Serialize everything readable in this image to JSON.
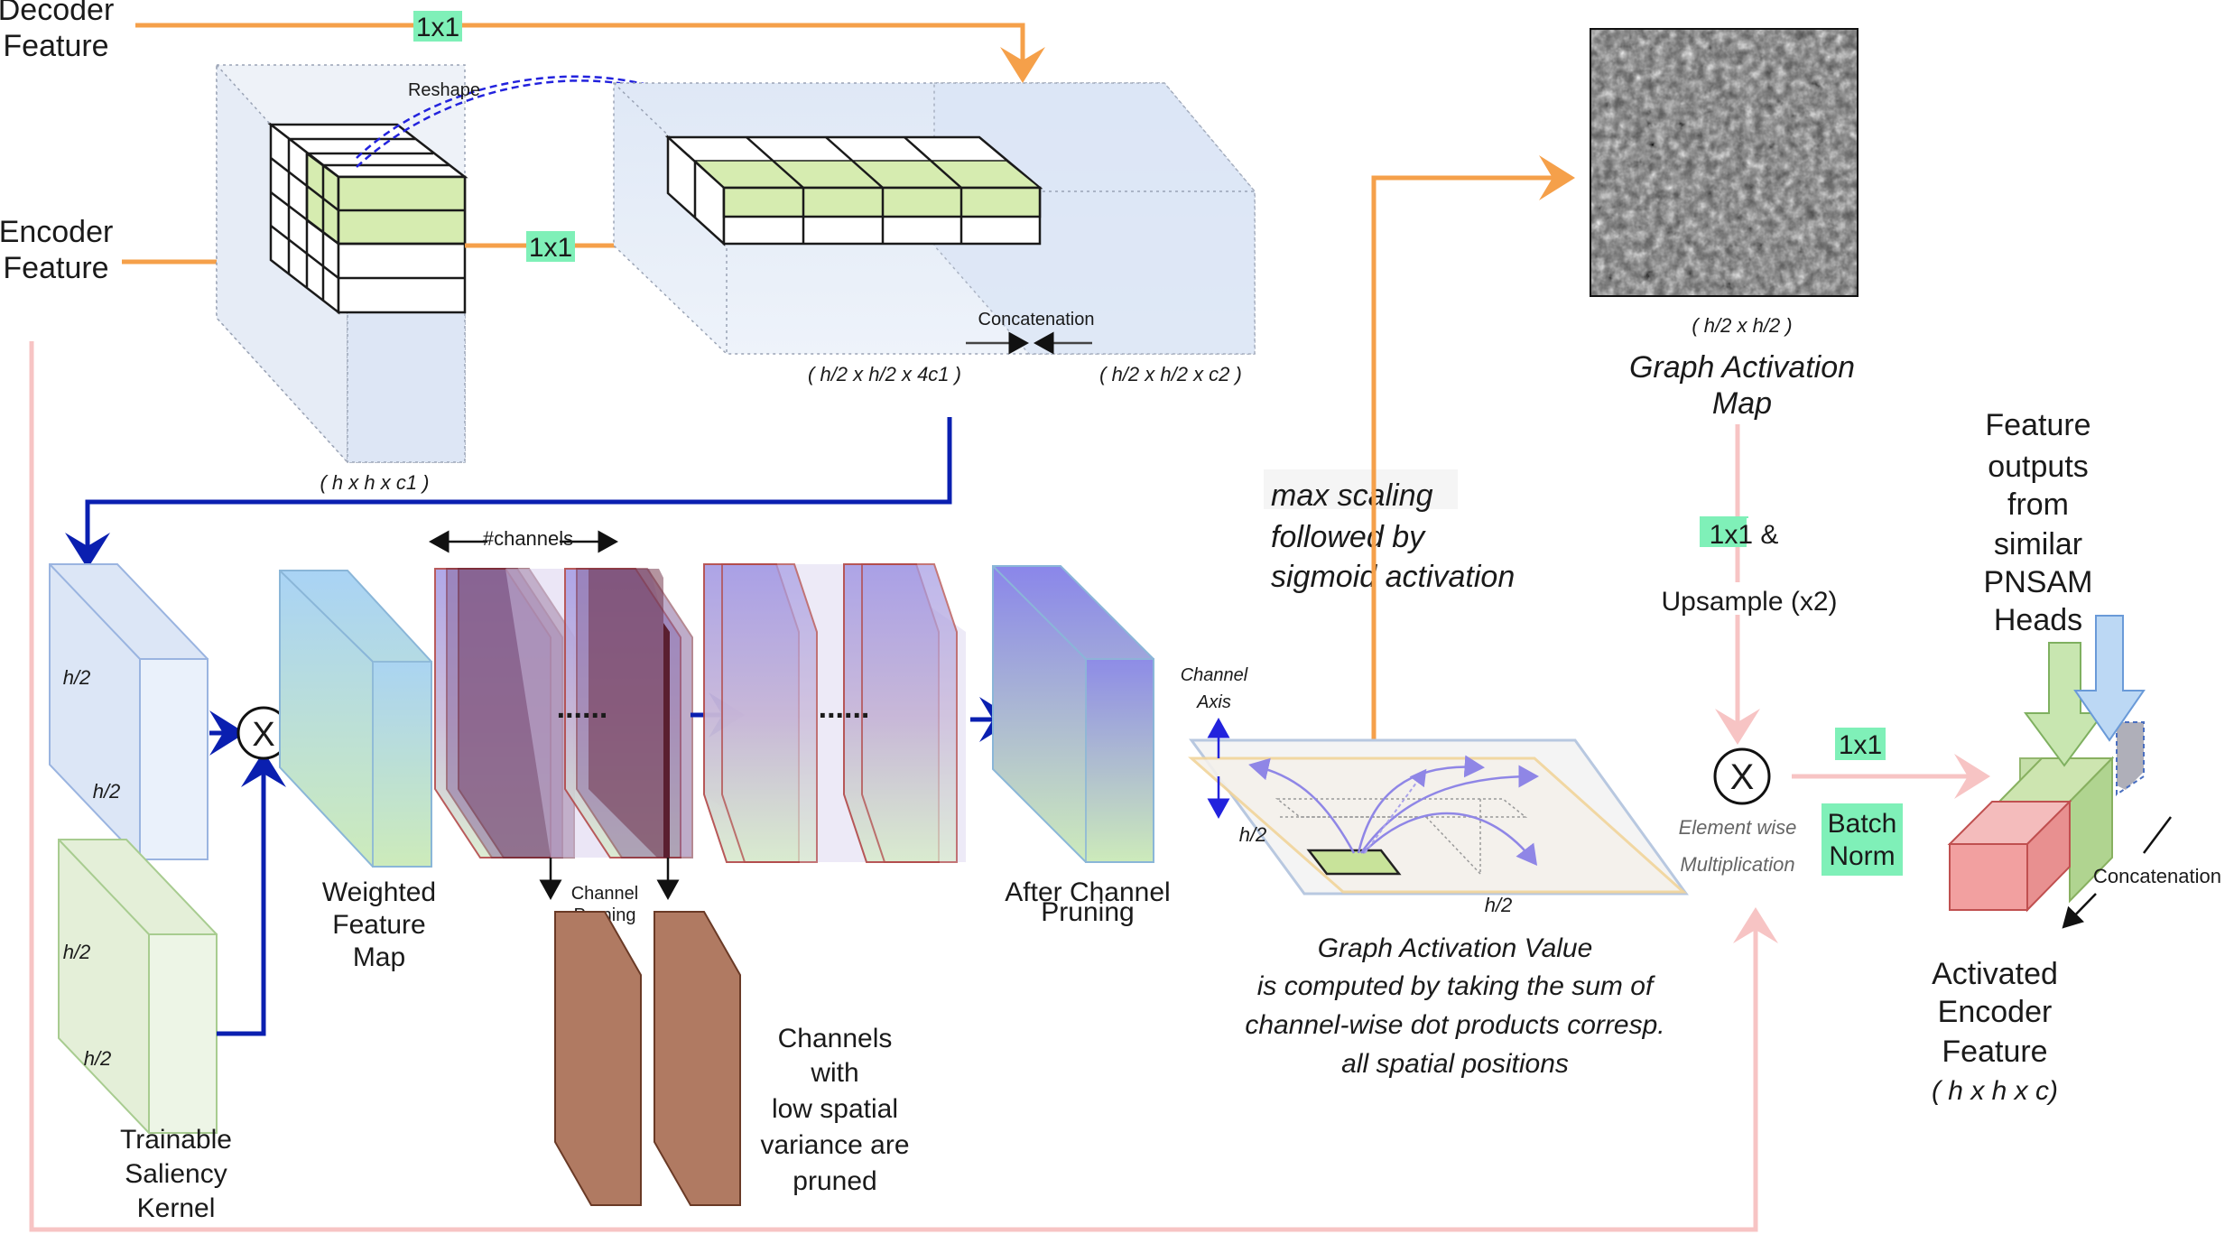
{
  "labels": {
    "decoder_feature": [
      "Decoder",
      "Feature"
    ],
    "encoder_feature": [
      "Encoder",
      "Feature"
    ],
    "top_conv": "1x1",
    "encoder_conv": "1x1",
    "reshape": "Reshape",
    "concat_top": "Concatenation",
    "dim_h_h_c1": "( h x h x c1 )",
    "dim_4c1": "( h/2 x h/2 x 4c1 )",
    "dim_c2": "( h/2 x h/2 x c2 )",
    "dim_h2_a": "h/2",
    "dim_h2_b": "h/2",
    "dim_h2_c": "h/2",
    "dim_h2_d": "h/2",
    "channels": "#channels",
    "weighted_feature_map": [
      "Weighted",
      "Feature",
      "Map"
    ],
    "trainable_kernel": [
      "Trainable",
      "Saliency",
      "Kernel"
    ],
    "channel_pruning": [
      "Channel",
      "Pruning"
    ],
    "dots_a": "......",
    "dots_b": "......",
    "after_pruning": [
      "After Channel",
      "Pruning"
    ],
    "pruned_channels": [
      "Channels",
      "with",
      "low spatial",
      "variance are",
      "pruned"
    ],
    "max_scaling": [
      "max scaling",
      "followed by",
      "sigmoid activation"
    ],
    "channel_axis": [
      "Channel",
      "Axis"
    ],
    "plane_h2_left": "h/2",
    "plane_h2_bottom": "h/2",
    "gav_text": [
      "Graph Activation Value",
      "is computed by taking the sum of",
      "channel-wise dot products corresp.",
      "all spatial positions"
    ],
    "gam_dim": "( h/2 x h/2 )",
    "gam_title": [
      "Graph  Activation",
      "Map"
    ],
    "conv_upsample_a": "1x1 &",
    "conv_upsample_b": "Upsample (x2)",
    "elem_mult": [
      "Element wise",
      "Multiplication"
    ],
    "final_conv": "1x1",
    "batch_norm": [
      "Batch",
      "Norm"
    ],
    "feature_outputs": [
      "Feature",
      "outputs",
      "from",
      "similar",
      "PNSAM",
      "Heads"
    ],
    "concat_right": "Concatenation",
    "activated": [
      "Activated",
      "Encoder",
      "Feature"
    ],
    "activated_dim": "( h x h x c)",
    "mult_symbol": "X"
  },
  "colors": {
    "orange": "#f5a04a",
    "blue": "#0a1fb0",
    "pink": "#f7c4c4",
    "green_face": "#d6ecb0",
    "purple_top": "#a9a0e0",
    "pruned_brown": "#b07a62",
    "red_cube": "#f2a0a0",
    "highlight": "#7ff0b8"
  },
  "icons": [
    "multiply-circle-icon",
    "arrow-icon",
    "noise-image-icon"
  ]
}
